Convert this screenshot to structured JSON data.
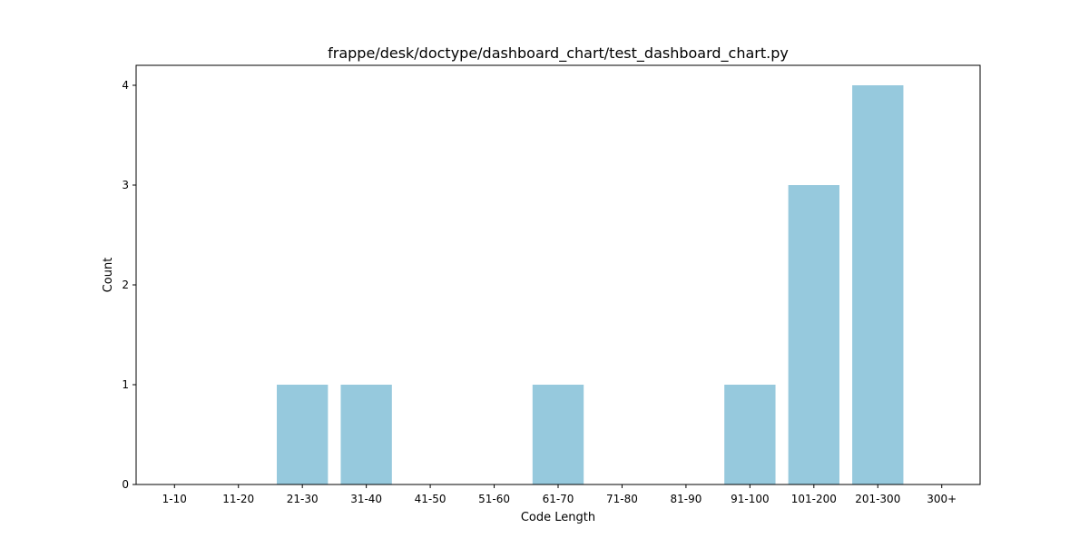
{
  "chart_data": {
    "type": "bar",
    "title": "frappe/desk/doctype/dashboard_chart/test_dashboard_chart.py",
    "xlabel": "Code Length",
    "ylabel": "Count",
    "categories": [
      "1-10",
      "11-20",
      "21-30",
      "31-40",
      "41-50",
      "51-60",
      "61-70",
      "71-80",
      "81-90",
      "91-100",
      "101-200",
      "201-300",
      "300+"
    ],
    "values": [
      0,
      0,
      1,
      1,
      0,
      0,
      1,
      0,
      0,
      1,
      3,
      4,
      0
    ],
    "yticks": [
      "0",
      "1",
      "2",
      "3",
      "4"
    ],
    "ylim": [
      0,
      4.2
    ],
    "grid": false,
    "bar_color": "#96c9dd"
  }
}
